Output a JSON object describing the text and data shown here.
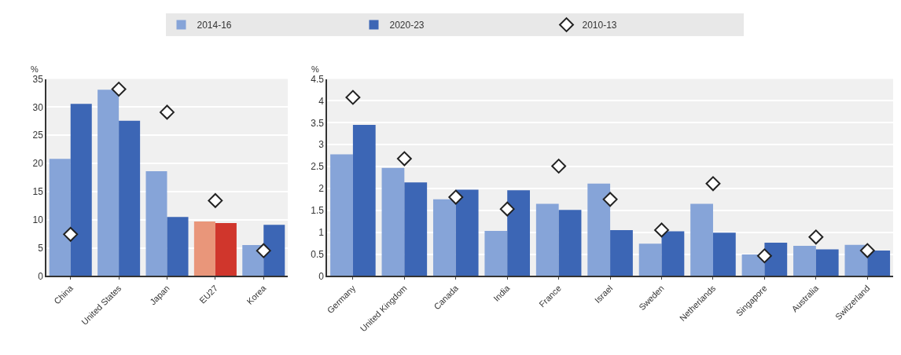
{
  "chart_data": [
    {
      "type": "bar",
      "ylabel": "%",
      "categories": [
        "China",
        "United States",
        "Japan",
        "EU27",
        "Korea"
      ],
      "ylim": [
        0,
        35
      ],
      "yticks": [
        0,
        5,
        10,
        15,
        20,
        25,
        30,
        35
      ],
      "grid": true,
      "legend": "top",
      "series": [
        {
          "name": "2014-16",
          "color": "#86a4d8",
          "colors": [
            "#86a4d8",
            "#86a4d8",
            "#86a4d8",
            "#e9967a",
            "#86a4d8"
          ],
          "values": [
            20.8,
            33.1,
            18.6,
            9.7,
            5.5
          ]
        },
        {
          "name": "2020-23",
          "color": "#3c66b5",
          "colors": [
            "#3c66b5",
            "#3c66b5",
            "#3c66b5",
            "#d0362c",
            "#3c66b5"
          ],
          "values": [
            30.6,
            27.6,
            10.5,
            9.4,
            9.1
          ]
        },
        {
          "name": "2010-13",
          "type": "scatter",
          "marker": "diamond",
          "color": "#ffffff",
          "values": [
            7.4,
            33.2,
            29.1,
            13.4,
            4.5
          ]
        }
      ]
    },
    {
      "type": "bar",
      "ylabel": "%",
      "categories": [
        "Germany",
        "United Kingdom",
        "Canada",
        "India",
        "France",
        "Israel",
        "Sweden",
        "Netherlands",
        "Singapore",
        "Australia",
        "Switzerland"
      ],
      "ylim": [
        0,
        4.5
      ],
      "yticks": [
        0,
        0.5,
        1,
        1.5,
        2,
        2.5,
        3,
        3.5,
        4,
        4.5
      ],
      "grid": true,
      "series": [
        {
          "name": "2014-16",
          "color": "#86a4d8",
          "values": [
            2.78,
            2.47,
            1.75,
            1.03,
            1.65,
            2.11,
            0.74,
            1.65,
            0.49,
            0.69,
            0.71
          ]
        },
        {
          "name": "2020-23",
          "color": "#3c66b5",
          "values": [
            3.45,
            2.14,
            1.97,
            1.96,
            1.51,
            1.05,
            1.02,
            0.99,
            0.76,
            0.61,
            0.58
          ]
        },
        {
          "name": "2010-13",
          "type": "scatter",
          "marker": "diamond",
          "color": "#ffffff",
          "values": [
            4.08,
            2.68,
            1.8,
            1.53,
            2.51,
            1.75,
            1.05,
            2.11,
            0.46,
            0.89,
            0.58
          ]
        }
      ]
    }
  ]
}
